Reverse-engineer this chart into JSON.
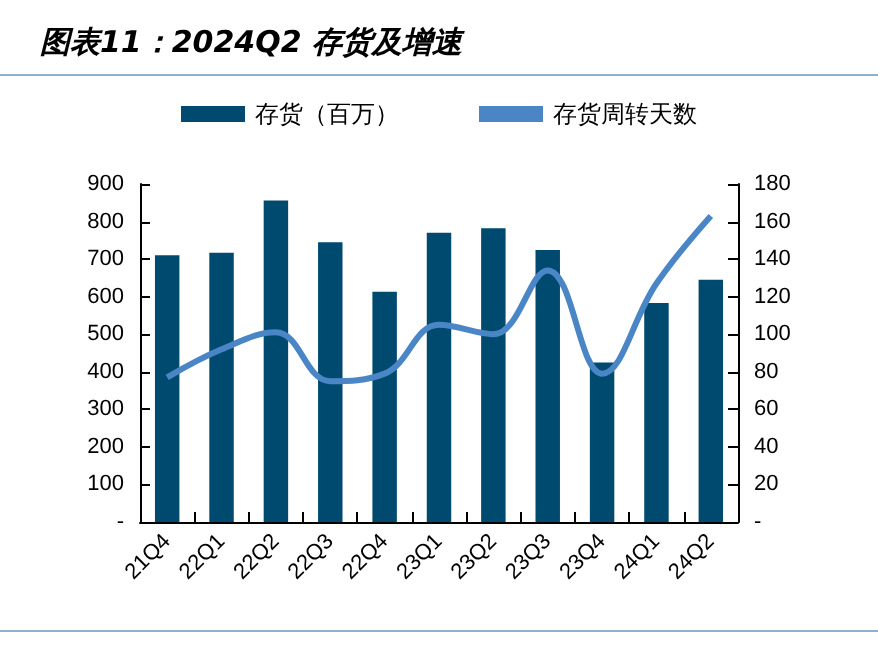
{
  "chart_data": {
    "type": "bar",
    "title": "图表11：2024Q2 存货及增速",
    "categories": [
      "21Q4",
      "22Q1",
      "22Q2",
      "22Q3",
      "22Q4",
      "23Q1",
      "23Q2",
      "23Q3",
      "23Q4",
      "24Q1",
      "24Q2"
    ],
    "series": [
      {
        "name": "存货（百万）",
        "color": "#004a70",
        "values": [
          710,
          717,
          856,
          745,
          613,
          770,
          782,
          724,
          425,
          583,
          645
        ]
      },
      {
        "name": "存货周转天数",
        "type": "line",
        "axis": "y2",
        "color": "#4a86c5",
        "values": [
          77,
          92,
          101,
          75,
          79,
          105,
          100,
          134,
          79,
          127,
          163
        ]
      }
    ],
    "ylim": [
      0,
      900
    ],
    "yticks": [
      {
        "value": 0,
        "label": "-"
      },
      100,
      200,
      300,
      400,
      500,
      600,
      700,
      800,
      900
    ],
    "y2lim": [
      0,
      180
    ],
    "y2ticks": [
      {
        "value": 0,
        "label": "-"
      },
      20,
      40,
      60,
      80,
      100,
      120,
      140,
      160,
      180
    ],
    "grid": false,
    "legend": "top",
    "marker": "none"
  }
}
